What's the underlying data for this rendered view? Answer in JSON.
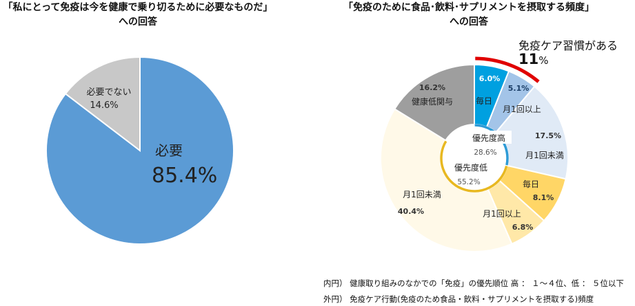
{
  "chart_data": [
    {
      "type": "pie",
      "title_line1": "「私にとって免疫は今を健康で乗り切るために必要なものだ」",
      "title_line2": "への回答",
      "slices": [
        {
          "label": "必要",
          "value": 85.4,
          "value_label": "85.4%",
          "color": "#5B9BD5"
        },
        {
          "label": "必要でない",
          "value": 14.6,
          "value_label": "14.6%",
          "color": "#C8C8C8"
        }
      ]
    },
    {
      "type": "pie",
      "title_line1": "「免疫のために食品･飲料･サプリメントを摂取する頻度」",
      "title_line2": "への回答",
      "inner": [
        {
          "label": "優先度高",
          "value": 28.6,
          "value_label": "28.6%",
          "color": "#2E9BD6"
        },
        {
          "label": "優先度低",
          "value": 55.2,
          "value_label": "55.2%",
          "color": "#E8B820"
        },
        {
          "label": "",
          "value": 16.2,
          "color": "#9E9E9E"
        }
      ],
      "outer": [
        {
          "label": "毎日",
          "value": 6.0,
          "value_label": "6.0%",
          "color": "#00A0E0"
        },
        {
          "label": "月1回以上",
          "value": 5.1,
          "value_label": "5.1%",
          "color": "#A3C4E8"
        },
        {
          "label": "月1回未満",
          "value": 17.5,
          "value_label": "17.5%",
          "color": "#E0EAF6"
        },
        {
          "label": "毎日",
          "value": 8.1,
          "value_label": "8.1%",
          "color": "#FFD666"
        },
        {
          "label": "月1回以上",
          "value": 6.8,
          "value_label": "6.8%",
          "color": "#FFE8A8"
        },
        {
          "label": "月1回未満",
          "value": 40.4,
          "value_label": "40.4%",
          "color": "#FFF9E8"
        },
        {
          "label": "健康低関与",
          "value": 16.2,
          "value_label": "16.2%",
          "color": "#9E9E9E"
        }
      ],
      "callout": {
        "label": "免疫ケア習慣がある",
        "value": "11",
        "unit": "%",
        "highlight_color": "#E00000"
      },
      "notes": [
        "内円） 健康取り組みのなかでの「免疫」の優先順位 高 ： １～４位、低 ： ５位以下",
        "外円） 免疫ケア行動(免疫のため食品・飲料・サプリメントを摂取する)頻度"
      ]
    }
  ]
}
